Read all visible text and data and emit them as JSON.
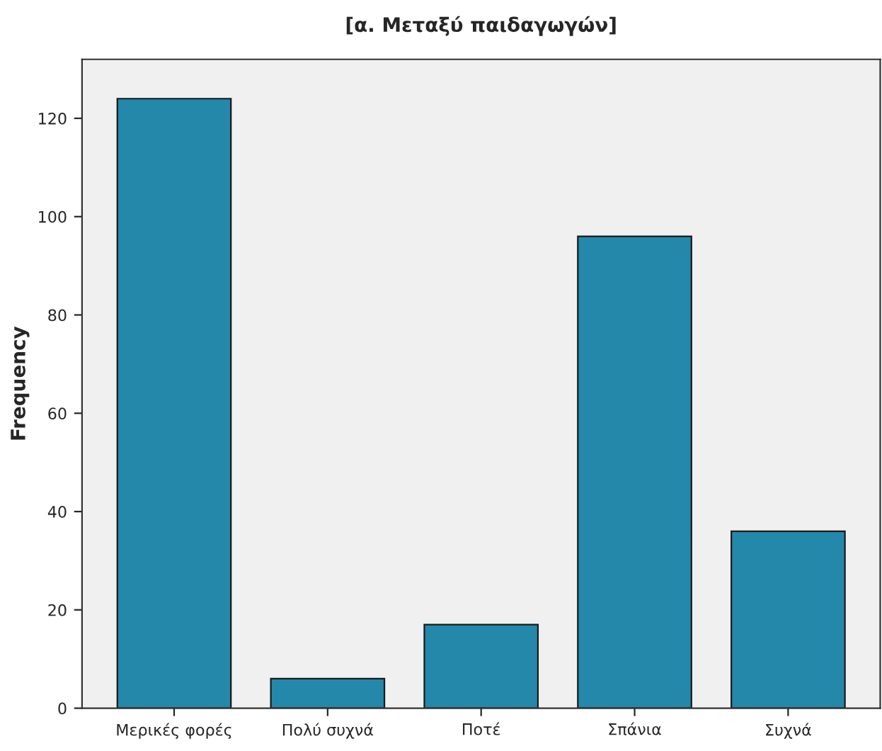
{
  "chart_data": {
    "type": "bar",
    "title": "[α. Μεταξύ παιδαγωγών]",
    "ylabel": "Frequency",
    "categories": [
      "Μερικές φορές",
      "Πολύ συχνά",
      "Ποτέ",
      "Σπάνια",
      "Συχνά"
    ],
    "values": [
      124,
      6,
      17,
      96,
      36
    ],
    "color": "#2388aa",
    "ylim": [
      0,
      132
    ],
    "yticks": [
      0,
      20,
      40,
      60,
      80,
      100,
      120
    ],
    "grid": false,
    "legend": false
  }
}
